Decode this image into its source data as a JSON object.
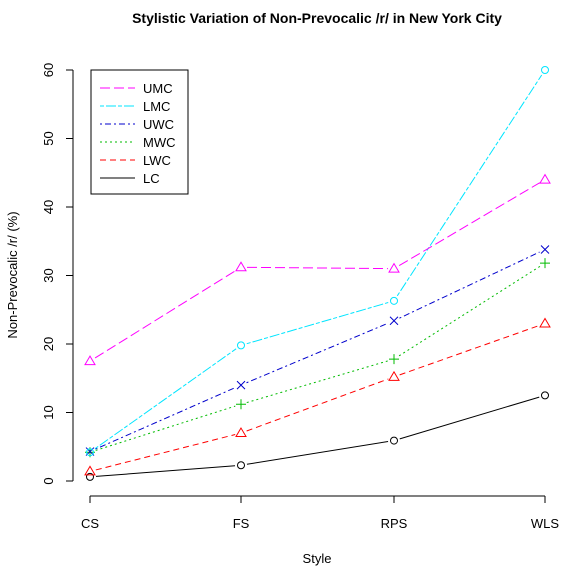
{
  "chart_data": {
    "type": "line",
    "title": "Stylistic Variation of Non-Prevocalic /r/ in New York City",
    "xlabel": "Style",
    "ylabel": "Non-Prevocalic /r/ (%)",
    "categories": [
      "CS",
      "FS",
      "RPS",
      "WLS"
    ],
    "ylim": [
      0,
      60
    ],
    "yticks": [
      0,
      10,
      20,
      30,
      40,
      50,
      60
    ],
    "legend_position": "top-left",
    "series": [
      {
        "name": "UMC",
        "values": [
          17.5,
          31.2,
          31.0,
          44.0
        ],
        "color": "#ff00ff",
        "dash": "longdash",
        "marker": "triangle"
      },
      {
        "name": "LMC",
        "values": [
          4.2,
          19.8,
          26.3,
          60.0
        ],
        "color": "#00e5ff",
        "dash": "twodash",
        "marker": "circle"
      },
      {
        "name": "UWC",
        "values": [
          4.3,
          14.0,
          23.4,
          33.8
        ],
        "color": "#0000cc",
        "dash": "dotdash",
        "marker": "x"
      },
      {
        "name": "MWC",
        "values": [
          4.2,
          11.2,
          17.8,
          31.8
        ],
        "color": "#00bb00",
        "dash": "dotted",
        "marker": "plus"
      },
      {
        "name": "LWC",
        "values": [
          1.4,
          7.0,
          15.2,
          23.0
        ],
        "color": "#ff0000",
        "dash": "dashed",
        "marker": "triangle"
      },
      {
        "name": "LC",
        "values": [
          0.6,
          2.3,
          5.9,
          12.5
        ],
        "color": "#000000",
        "dash": "solid",
        "marker": "circle"
      }
    ]
  }
}
